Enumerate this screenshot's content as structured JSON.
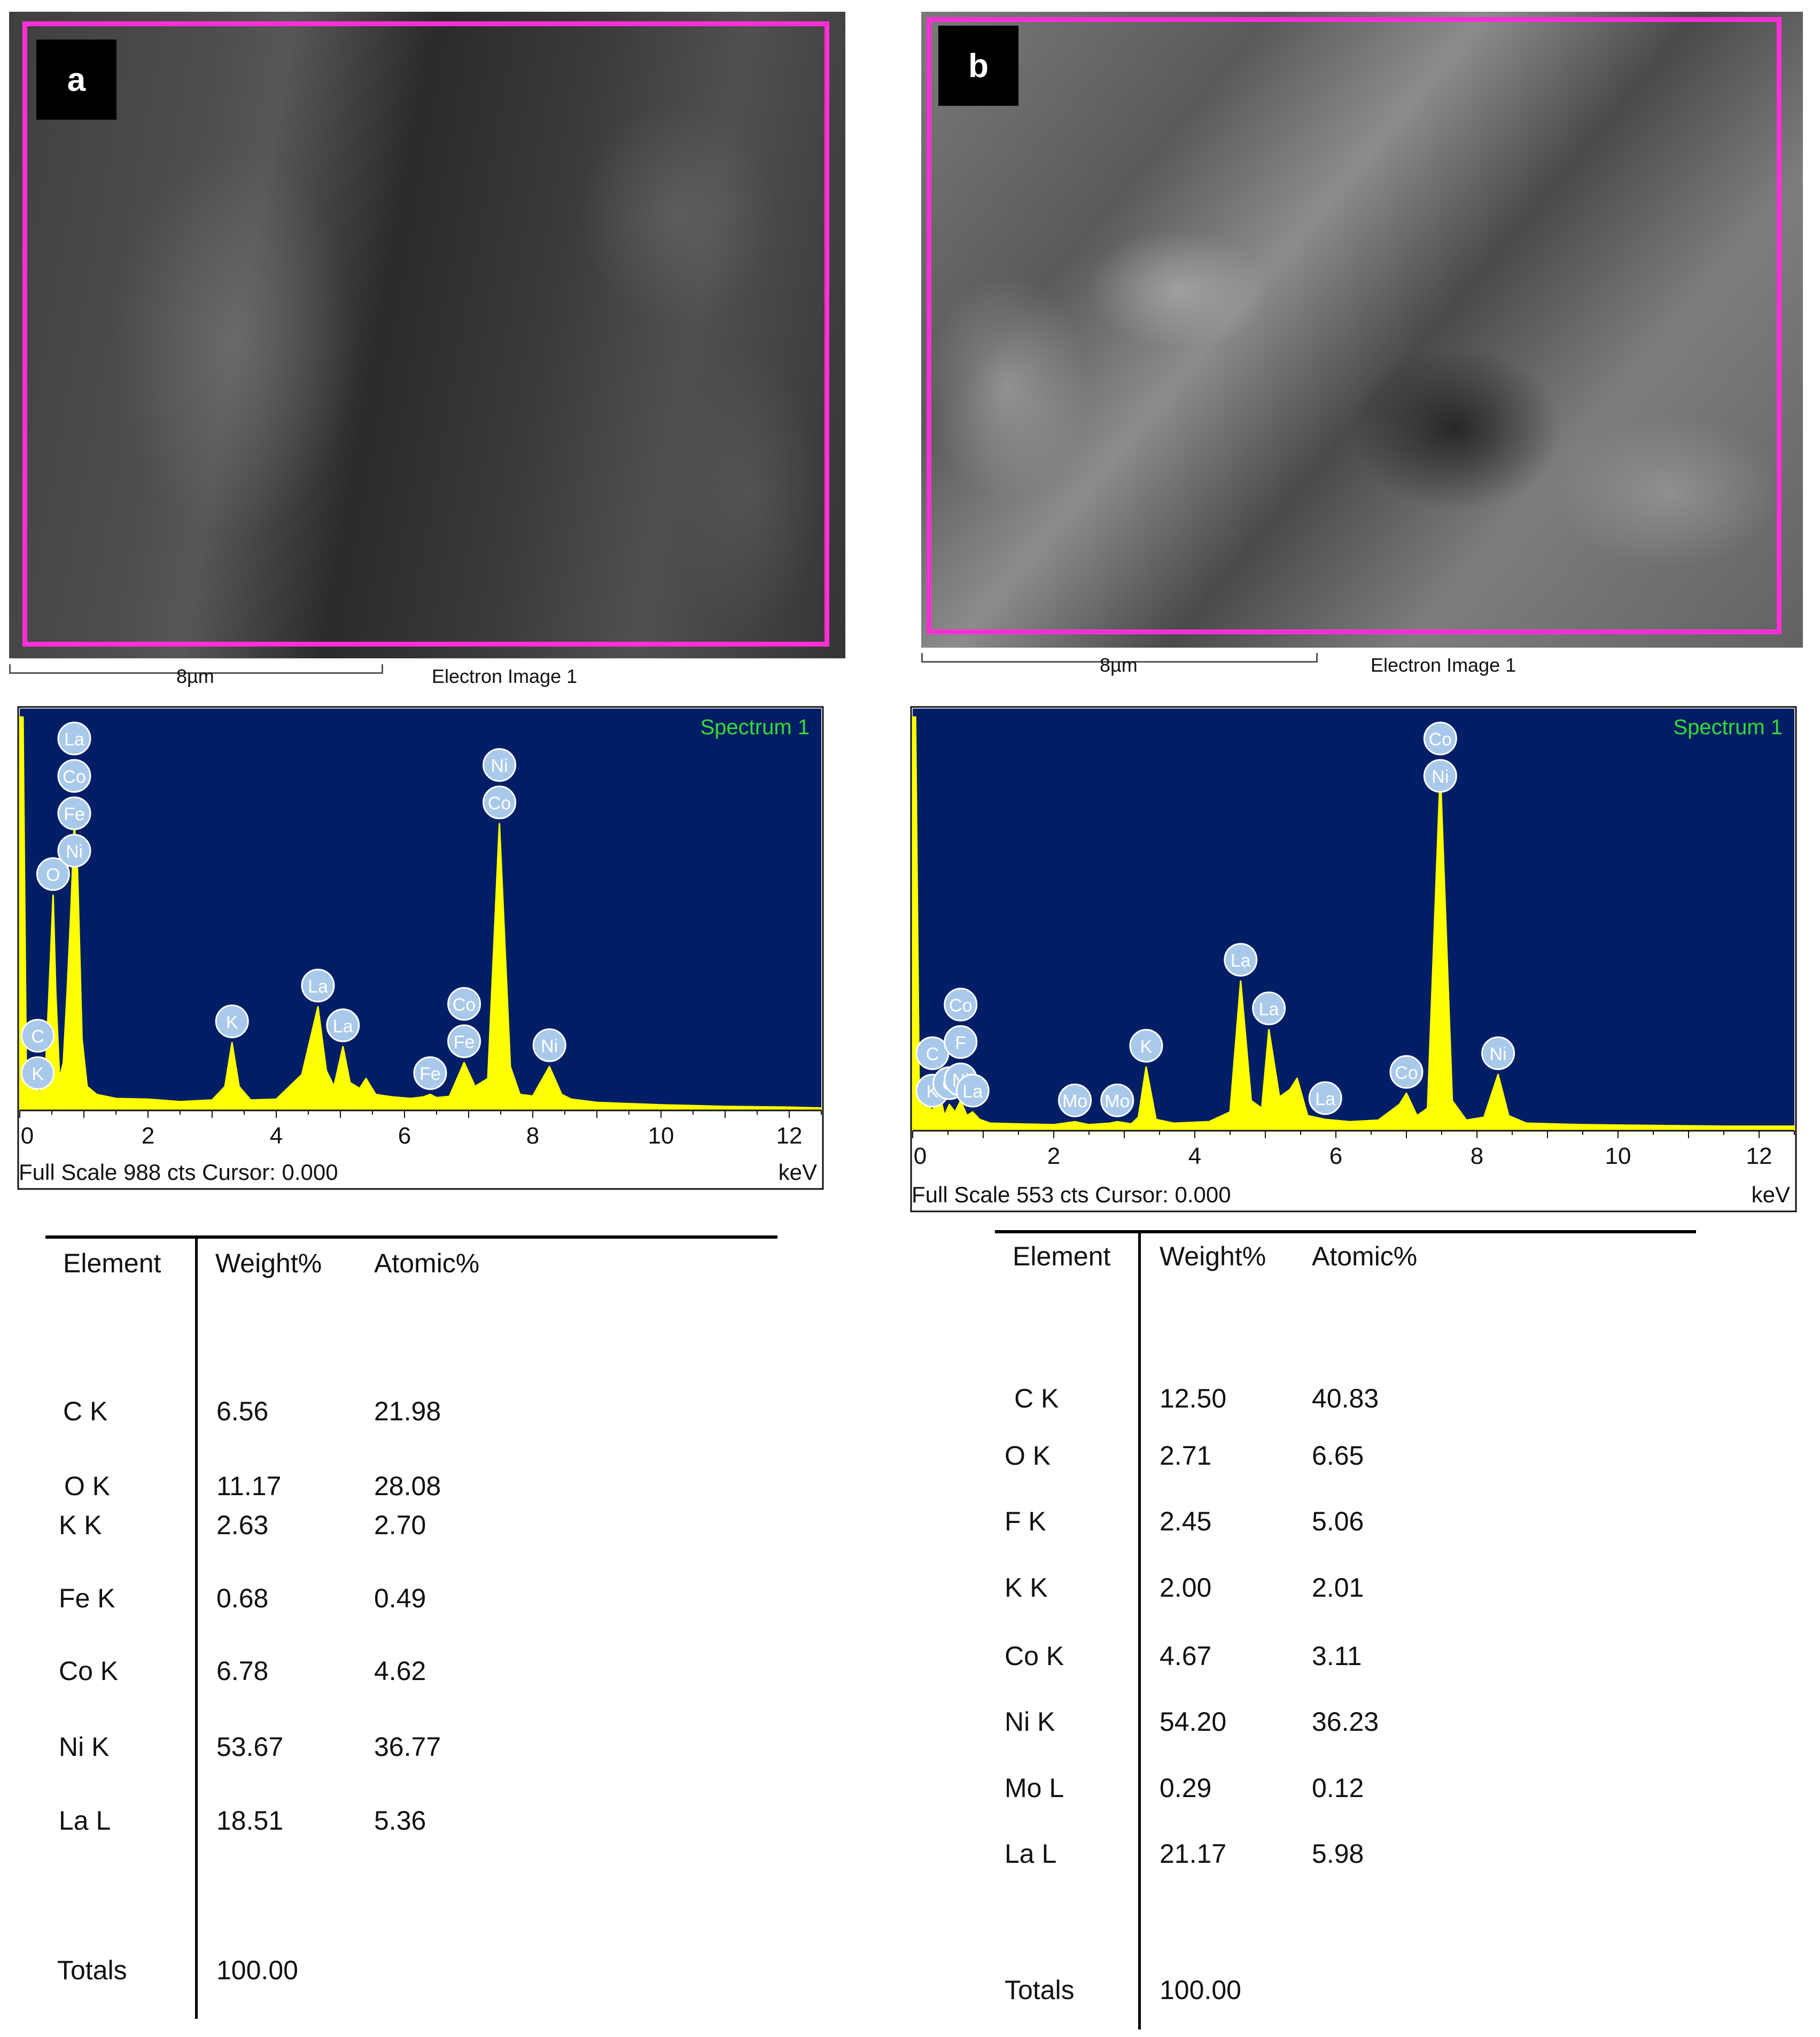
{
  "panels": [
    {
      "label": "a",
      "image": {
        "scale_label": "8µm",
        "caption": "Electron Image 1"
      },
      "table": {
        "headers": [
          "Element",
          "Weight%",
          "Atomic%"
        ],
        "rows": [
          {
            "element": "C K",
            "weight": "6.56",
            "atomic": "21.98"
          },
          {
            "element": "O K",
            "weight": "11.17",
            "atomic": "28.08"
          },
          {
            "element": "K K",
            "weight": "2.63",
            "atomic": "2.70"
          },
          {
            "element": "Fe K",
            "weight": "0.68",
            "atomic": "0.49"
          },
          {
            "element": "Co K",
            "weight": "6.78",
            "atomic": "4.62"
          },
          {
            "element": "Ni K",
            "weight": "53.67",
            "atomic": "36.77"
          },
          {
            "element": "La L",
            "weight": "18.51",
            "atomic": "5.36"
          }
        ],
        "totals_label": "Totals",
        "totals_value": "100.00"
      }
    },
    {
      "label": "b",
      "image": {
        "scale_label": "8µm",
        "caption": "Electron Image 1"
      },
      "table": {
        "headers": [
          "Element",
          "Weight%",
          "Atomic%"
        ],
        "rows": [
          {
            "element": "C K",
            "weight": "12.50",
            "atomic": "40.83"
          },
          {
            "element": "O K",
            "weight": "2.71",
            "atomic": "6.65"
          },
          {
            "element": "F K",
            "weight": "2.45",
            "atomic": "5.06"
          },
          {
            "element": "K K",
            "weight": "2.00",
            "atomic": "2.01"
          },
          {
            "element": "Co K",
            "weight": "4.67",
            "atomic": "3.11"
          },
          {
            "element": "Ni K",
            "weight": "54.20",
            "atomic": "36.23"
          },
          {
            "element": "Mo L",
            "weight": "0.29",
            "atomic": "0.12"
          },
          {
            "element": "La L",
            "weight": "21.17",
            "atomic": "5.98"
          }
        ],
        "totals_label": "Totals",
        "totals_value": "100.00"
      }
    }
  ],
  "colors": {
    "plot_background": "#001e66",
    "spectrum": "#ffff00",
    "legend_text": "#33dd33",
    "roi_box": "#ff2fd6",
    "peak_marker": "#a9c9ea"
  },
  "chart_data": [
    {
      "type": "line",
      "legend": "Spectrum 1",
      "footer": "Full Scale 988 cts Cursor: 0.000",
      "xunit": "keV",
      "xlim": [
        0,
        12.5
      ],
      "ylim": [
        0,
        988
      ],
      "xticks": [
        0,
        2,
        4,
        6,
        8,
        10,
        12
      ],
      "x": [
        0.0,
        0.05,
        0.1,
        0.15,
        0.2,
        0.26,
        0.3,
        0.35,
        0.4,
        0.45,
        0.52,
        0.56,
        0.62,
        0.68,
        0.74,
        0.8,
        0.85,
        0.9,
        0.97,
        1.05,
        1.2,
        1.5,
        2.0,
        2.5,
        3.0,
        3.2,
        3.31,
        3.42,
        3.6,
        4.0,
        4.4,
        4.65,
        4.78,
        4.9,
        5.04,
        5.15,
        5.3,
        5.4,
        5.55,
        5.8,
        6.1,
        6.3,
        6.4,
        6.5,
        6.7,
        6.93,
        7.1,
        7.3,
        7.48,
        7.65,
        7.8,
        8.0,
        8.26,
        8.45,
        8.6,
        9.0,
        10.0,
        11.0,
        12.0,
        12.5
      ],
      "values": [
        988,
        988,
        120,
        50,
        90,
        95,
        40,
        60,
        100,
        270,
        540,
        300,
        80,
        120,
        300,
        510,
        720,
        600,
        180,
        60,
        40,
        30,
        28,
        22,
        26,
        60,
        170,
        60,
        26,
        28,
        90,
        260,
        100,
        60,
        160,
        70,
        55,
        80,
        40,
        34,
        30,
        34,
        40,
        32,
        35,
        120,
        60,
        80,
        720,
        110,
        40,
        36,
        110,
        40,
        28,
        20,
        14,
        10,
        8,
        6
      ],
      "peak_labels": [
        {
          "x": 0.28,
          "labels": [
            "C",
            "K"
          ]
        },
        {
          "x": 0.52,
          "labels": [
            "O"
          ]
        },
        {
          "x": 0.85,
          "labels": [
            "La",
            "Co",
            "Fe",
            "Ni"
          ]
        },
        {
          "x": 3.31,
          "labels": [
            "K"
          ]
        },
        {
          "x": 4.65,
          "labels": [
            "La"
          ]
        },
        {
          "x": 5.04,
          "labels": [
            "La"
          ]
        },
        {
          "x": 6.4,
          "labels": [
            "Fe"
          ]
        },
        {
          "x": 6.93,
          "labels": [
            "Co",
            "Fe"
          ]
        },
        {
          "x": 7.48,
          "labels": [
            "Ni",
            "Co"
          ]
        },
        {
          "x": 8.26,
          "labels": [
            "Ni"
          ]
        }
      ]
    },
    {
      "type": "line",
      "legend": "Spectrum 1",
      "footer": "Full Scale 553 cts Cursor: 0.000",
      "xunit": "keV",
      "xlim": [
        0,
        12.5
      ],
      "ylim": [
        0,
        553
      ],
      "xticks": [
        0,
        2,
        4,
        6,
        8,
        10,
        12
      ],
      "x": [
        0.0,
        0.04,
        0.09,
        0.14,
        0.2,
        0.28,
        0.36,
        0.45,
        0.52,
        0.6,
        0.68,
        0.77,
        0.85,
        0.95,
        1.1,
        1.5,
        2.0,
        2.3,
        2.5,
        2.8,
        2.9,
        3.1,
        3.2,
        3.31,
        3.45,
        3.7,
        4.2,
        4.5,
        4.65,
        4.8,
        4.95,
        5.05,
        5.2,
        5.35,
        5.45,
        5.6,
        5.85,
        6.2,
        6.6,
        6.9,
        7.0,
        7.15,
        7.3,
        7.48,
        7.65,
        7.85,
        8.1,
        8.3,
        8.45,
        8.7,
        9.5,
        10.5,
        11.5,
        12.5
      ],
      "values": [
        553,
        553,
        70,
        30,
        40,
        25,
        60,
        20,
        35,
        25,
        40,
        20,
        25,
        15,
        10,
        9,
        8,
        12,
        8,
        10,
        12,
        9,
        18,
        85,
        15,
        10,
        12,
        25,
        200,
        40,
        30,
        135,
        45,
        55,
        70,
        20,
        15,
        12,
        14,
        35,
        50,
        20,
        30,
        480,
        40,
        14,
        18,
        75,
        20,
        10,
        8,
        7,
        6,
        6
      ],
      "peak_labels": [
        {
          "x": 0.28,
          "labels": [
            "C",
            "K"
          ]
        },
        {
          "x": 0.52,
          "labels": [
            "O"
          ]
        },
        {
          "x": 0.68,
          "labels": [
            "Co",
            "F",
            "Ni"
          ]
        },
        {
          "x": 0.85,
          "labels": [
            "La"
          ]
        },
        {
          "x": 2.3,
          "labels": [
            "Mo"
          ]
        },
        {
          "x": 2.9,
          "labels": [
            "Mo"
          ]
        },
        {
          "x": 3.31,
          "labels": [
            "K"
          ]
        },
        {
          "x": 4.65,
          "labels": [
            "La"
          ]
        },
        {
          "x": 5.05,
          "labels": [
            "La"
          ]
        },
        {
          "x": 5.85,
          "labels": [
            "La"
          ]
        },
        {
          "x": 7.0,
          "labels": [
            "Co"
          ]
        },
        {
          "x": 7.48,
          "labels": [
            "Co",
            "Ni"
          ]
        },
        {
          "x": 8.3,
          "labels": [
            "Ni"
          ]
        }
      ]
    }
  ]
}
